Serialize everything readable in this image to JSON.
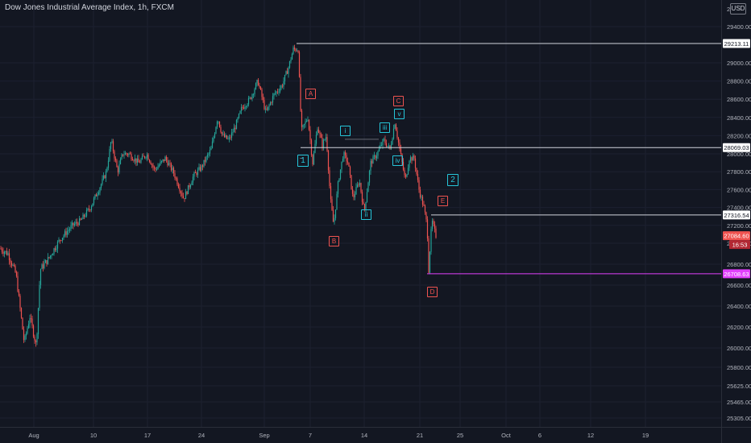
{
  "header": {
    "title": "Dow Jones Industrial Average Index, 1h, FXCM",
    "currency": "USD",
    "axis_top_partial": "2"
  },
  "colors": {
    "background": "#131722",
    "up": "#26a69a",
    "down": "#ef5350",
    "level_line": "#d1d4dc",
    "low_line": "#e040fb",
    "label_cyan": "#26c6da",
    "label_red": "#ef5350"
  },
  "chart_data": {
    "type": "candlestick",
    "series_shape": [
      [
        "Aug",
        26700,
        26000,
        26900
      ],
      [
        "10",
        26900,
        27500,
        27800
      ],
      [
        "17",
        27900,
        27700,
        28000
      ],
      [
        "24",
        27600,
        28350,
        28550
      ],
      [
        "Sep",
        28700,
        29213,
        29213
      ],
      [
        "7",
        28500,
        27200,
        27800
      ],
      [
        "14",
        27800,
        27650,
        28200
      ],
      [
        "21",
        28050,
        26709,
        27084
      ]
    ],
    "y_ticks": [
      "29400.00",
      "29000.00",
      "28800.00",
      "28600.00",
      "28400.00",
      "28200.00",
      "28000.00",
      "27800.00",
      "27600.00",
      "27400.00",
      "27200.00",
      "27000.00",
      "26800.00",
      "26600.00",
      "26400.00",
      "26200.00",
      "26000.00",
      "25800.00",
      "25625.00",
      "25465.00",
      "25305.00"
    ],
    "x_ticks": [
      "Aug",
      "10",
      "17",
      "24",
      "Sep",
      "7",
      "14",
      "21",
      "25",
      "Oct",
      "6",
      "12",
      "19"
    ],
    "price_labels": [
      {
        "text": "29213.11",
        "kind": "level"
      },
      {
        "text": "28069.03",
        "kind": "level"
      },
      {
        "text": "27316.54",
        "kind": "level"
      },
      {
        "text": "27084.60",
        "kind": "current"
      },
      {
        "text": "16:53",
        "kind": "countdown"
      },
      {
        "text": "26708.63",
        "kind": "low"
      }
    ],
    "wave_labels": [
      {
        "text": "A",
        "style": "red"
      },
      {
        "text": "B",
        "style": "red"
      },
      {
        "text": "C",
        "style": "red"
      },
      {
        "text": "D",
        "style": "red"
      },
      {
        "text": "E",
        "style": "red"
      },
      {
        "text": "1",
        "style": "cyan"
      },
      {
        "text": "2",
        "style": "cyan"
      },
      {
        "text": "i",
        "style": "cyan"
      },
      {
        "text": "ii",
        "style": "cyan"
      },
      {
        "text": "iii",
        "style": "cyan"
      },
      {
        "text": "iv",
        "style": "cyan"
      },
      {
        "text": "v",
        "style": "cyan"
      }
    ]
  }
}
